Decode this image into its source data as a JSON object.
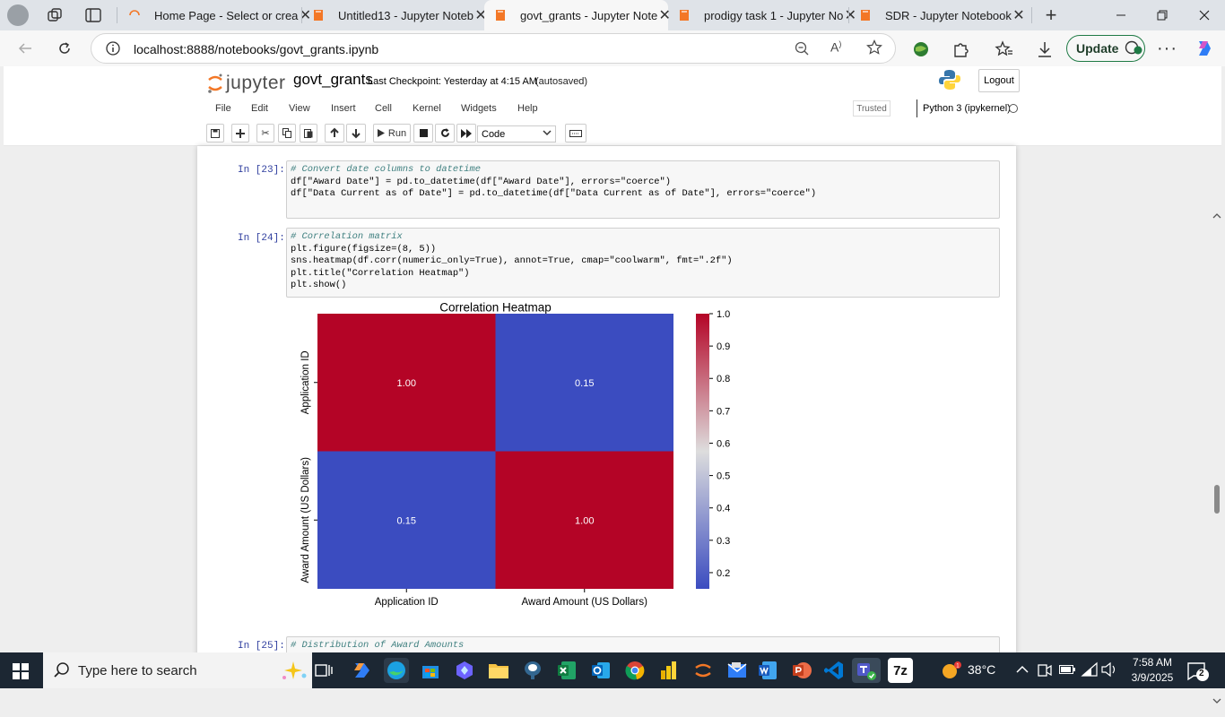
{
  "browser": {
    "tabs": [
      {
        "title": "Home Page - Select or crea",
        "close": "✕"
      },
      {
        "title": "Untitled13 - Jupyter Noteb",
        "close": "✕"
      },
      {
        "title": "govt_grants - Jupyter Note",
        "close": "✕"
      },
      {
        "title": "prodigy task 1 - Jupyter No",
        "close": "✕"
      },
      {
        "title": "SDR - Jupyter Notebook",
        "close": "✕"
      }
    ],
    "new_tab": "+",
    "url": "localhost:8888/notebooks/govt_grants.ipynb",
    "update_label": "Update",
    "icons": {
      "back": "arrow-left-icon",
      "refresh": "refresh-icon",
      "info": "info-icon",
      "zoom": "zoom-out-icon",
      "read_aloud": "read-aloud-icon",
      "favorite": "star-icon",
      "more": "ellipsis-icon"
    }
  },
  "jupyter": {
    "logo_text": "jupyter",
    "notebook_name": "govt_grants",
    "checkpoint": "Last Checkpoint: Yesterday at 4:15 AM",
    "autosave": "(autosaved)",
    "logout_label": "Logout",
    "menus": [
      "File",
      "Edit",
      "View",
      "Insert",
      "Cell",
      "Kernel",
      "Widgets",
      "Help"
    ],
    "trusted": "Trusted",
    "kernel": "Python 3 (ipykernel)",
    "run_label": "Run",
    "cell_type": "Code",
    "accent_color": "#f37726"
  },
  "cells": [
    {
      "prompt": "In [23]:",
      "lines": [
        "# Convert date columns to datetime",
        "df[\"Award Date\"] = pd.to_datetime(df[\"Award Date\"], errors=\"coerce\")",
        "df[\"Data Current as of Date\"] = pd.to_datetime(df[\"Data Current as of Date\"], errors=\"coerce\")"
      ]
    },
    {
      "prompt": "In [24]:",
      "lines": [
        "# Correlation matrix",
        "plt.figure(figsize=(8, 5))",
        "sns.heatmap(df.corr(numeric_only=True), annot=True, cmap=\"coolwarm\", fmt=\".2f\")",
        "plt.title(\"Correlation Heatmap\")",
        "plt.show()"
      ]
    },
    {
      "prompt": "In [25]:",
      "lines": [
        "# Distribution of Award Amounts"
      ]
    }
  ],
  "chart_data": {
    "type": "heatmap",
    "title": "Correlation Heatmap",
    "x_labels": [
      "Application ID",
      "Award Amount (US Dollars)"
    ],
    "y_labels": [
      "Application ID",
      "Award Amount (US Dollars)"
    ],
    "values": [
      [
        1.0,
        0.15
      ],
      [
        0.15,
        1.0
      ]
    ],
    "colormap": "coolwarm",
    "colorbar": {
      "min": 0.15,
      "max": 1.0,
      "ticks": [
        "1.0",
        "0.9",
        "0.8",
        "0.7",
        "0.6",
        "0.5",
        "0.4",
        "0.3",
        "0.2"
      ]
    },
    "colors": {
      "high": "#b40426",
      "low": "#3b4cc0"
    }
  },
  "taskbar": {
    "search_placeholder": "Type here to search",
    "weather": "38°C",
    "time": "7:58 AM",
    "date": "3/9/2025",
    "notification_count": "2",
    "apps": [
      "cortana-icon",
      "task-view-icon",
      "edge-icon",
      "store-icon",
      "copilot-icon",
      "file-explorer-icon",
      "pgadmin-icon",
      "excel-icon",
      "outlook-icon",
      "chrome-icon",
      "power-bi-icon",
      "jupyter-icon",
      "mail-icon",
      "word-icon",
      "powerpoint-icon",
      "vscode-icon",
      "teams-icon",
      "7zip-icon"
    ],
    "zip_label": "7z"
  }
}
